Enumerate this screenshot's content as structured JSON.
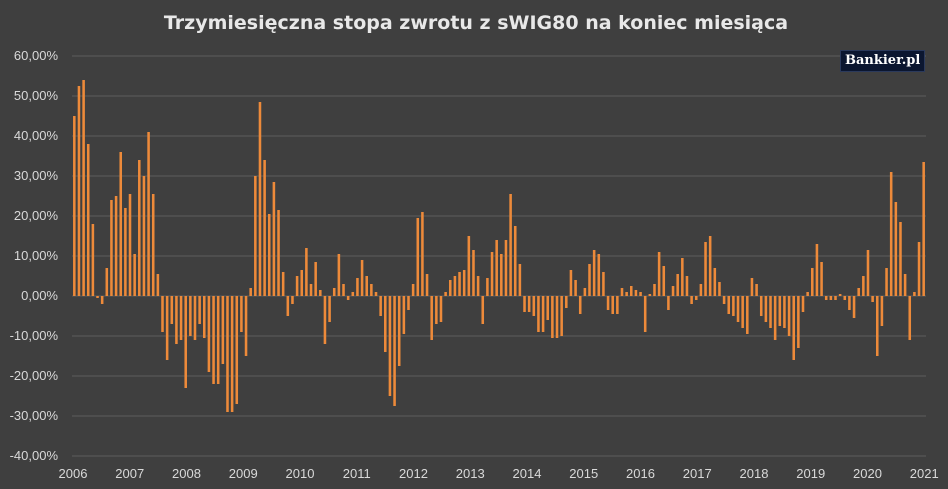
{
  "chart_data": {
    "type": "bar",
    "title": "Trzymiesięczna stopa zwrotu z sWIG80 na koniec miesiąca",
    "xlabel": "",
    "ylabel": "",
    "ylim": [
      -40,
      60
    ],
    "ytick_labels": [
      "60,00%",
      "50,00%",
      "40,00%",
      "30,00%",
      "20,00%",
      "10,00%",
      "0,00%",
      "-10,00%",
      "-20,00%",
      "-30,00%",
      "-40,00%"
    ],
    "ytick_values": [
      60,
      50,
      40,
      30,
      20,
      10,
      0,
      -10,
      -20,
      -30,
      -40
    ],
    "xtick_labels": [
      "2006",
      "2007",
      "2008",
      "2009",
      "2010",
      "2011",
      "2012",
      "2013",
      "2014",
      "2015",
      "2016",
      "2017",
      "2018",
      "2019",
      "2020",
      "2021"
    ],
    "bar_color": "#ed8a3a",
    "grid": true,
    "series": [
      {
        "values": [
          45,
          52.5,
          54,
          38,
          18,
          -0.5,
          -2,
          7,
          24,
          25,
          36,
          22,
          25.5,
          10.5,
          34,
          30,
          41,
          25.5,
          5.5,
          -9,
          -16,
          -7,
          -12,
          -11,
          -23,
          -10,
          -11,
          -7,
          -10.5,
          -19,
          -22,
          -22,
          -17,
          -29,
          -29,
          -27,
          -9,
          -15,
          2,
          30,
          48.5,
          34,
          20.5,
          28.5,
          21.5,
          6,
          -5,
          -2,
          5,
          6.5,
          12,
          3,
          8.5,
          1.5,
          -12,
          -6.5,
          2,
          10.5,
          3,
          -1,
          1,
          4.5,
          9,
          5,
          3,
          1,
          -5,
          -14,
          -25,
          -27.5,
          -17.5,
          -9.5,
          -3.5,
          3,
          19.5,
          21,
          5.5,
          -11,
          -7,
          -6.5,
          1,
          4,
          5,
          6,
          6.5,
          15,
          11.5,
          5,
          -7,
          4.5,
          11,
          14,
          10.5,
          14,
          25.5,
          17.5,
          8,
          -4,
          -4,
          -5,
          -9,
          -9,
          -6,
          -10.5,
          -10.5,
          -10,
          -3,
          6.5,
          4,
          -4.5,
          2,
          8,
          11.5,
          10.5,
          6,
          -3.5,
          -4.5,
          -4.5,
          2,
          1,
          2.5,
          1.5,
          1,
          -9,
          0.5,
          3,
          11,
          7.5,
          -3.5,
          2.5,
          5.5,
          9.5,
          5,
          -2,
          -1,
          3,
          13.5,
          15,
          7,
          3.5,
          -2,
          -4.5,
          -5,
          -6.5,
          -8,
          -9.5,
          4.5,
          3,
          -5,
          -6.5,
          -8,
          -11,
          -7.5,
          -8,
          -10,
          -16,
          -13,
          -4,
          1,
          7,
          13,
          8.5,
          -1,
          -1,
          -1,
          0.5,
          -1,
          -3.5,
          -5.5,
          2,
          5,
          11.5,
          -1.5,
          -15,
          -7.5,
          7,
          31,
          23.5,
          18.5,
          5.5,
          -11,
          1,
          13.5,
          33.5
        ]
      }
    ]
  },
  "logo": {
    "text": "Bankier.pl"
  }
}
